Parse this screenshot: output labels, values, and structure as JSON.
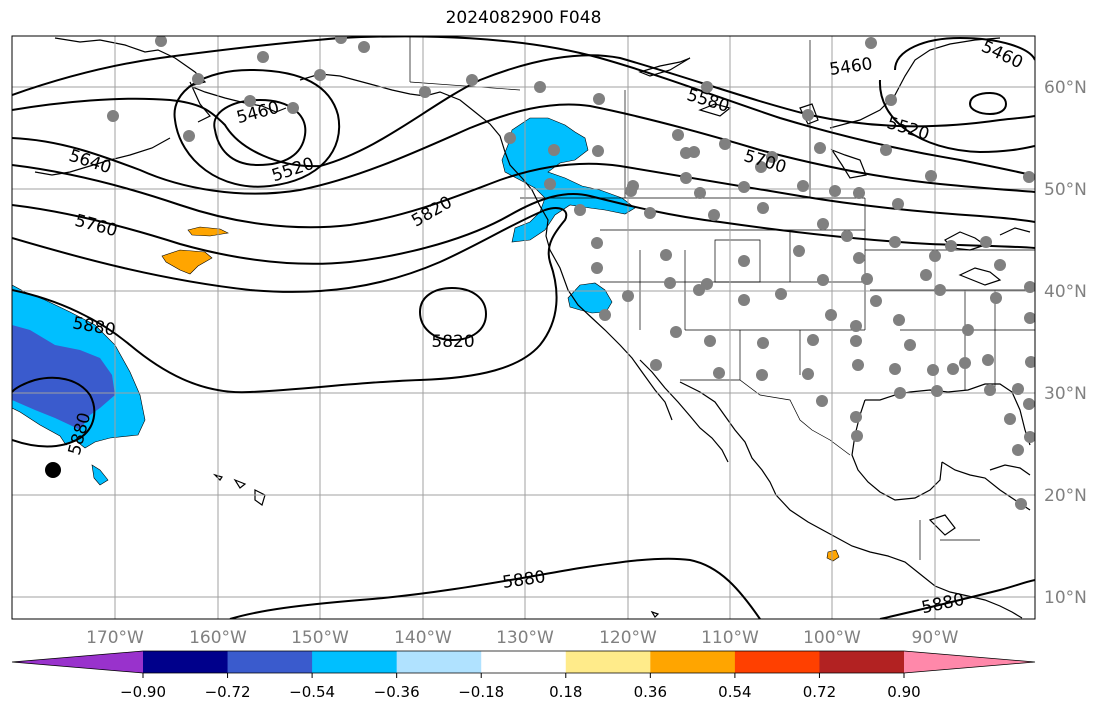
{
  "title": "2024082900 F048",
  "map": {
    "lon_labels": [
      "170°W",
      "160°W",
      "150°W",
      "140°W",
      "130°W",
      "120°W",
      "110°W",
      "100°W",
      "90°W"
    ],
    "lat_labels": [
      "60°N",
      "50°N",
      "40°N",
      "30°N",
      "20°N",
      "10°N"
    ],
    "contour_labels": [
      "5460",
      "5460",
      "5640",
      "5520",
      "5460",
      "5580",
      "5520",
      "5700",
      "5820",
      "5760",
      "5880",
      "5820",
      "5880",
      "5880",
      "5880"
    ],
    "colors": {
      "land_outline": "#000000",
      "grid": "#a0a0a0",
      "station_dot": "#808080",
      "contour": "#000000"
    }
  },
  "colorbar": {
    "ticks": [
      "−0.90",
      "−0.72",
      "−0.54",
      "−0.36",
      "−0.18",
      "0.18",
      "0.36",
      "0.54",
      "0.72",
      "0.90"
    ],
    "colors": [
      "#9932cc",
      "#00008b",
      "#3a5bcd",
      "#00bfff",
      "#b0e2ff",
      "#ffffff",
      "#ffeb8a",
      "#ffa500",
      "#ff4000",
      "#b22222",
      "#ff88aa"
    ]
  }
}
